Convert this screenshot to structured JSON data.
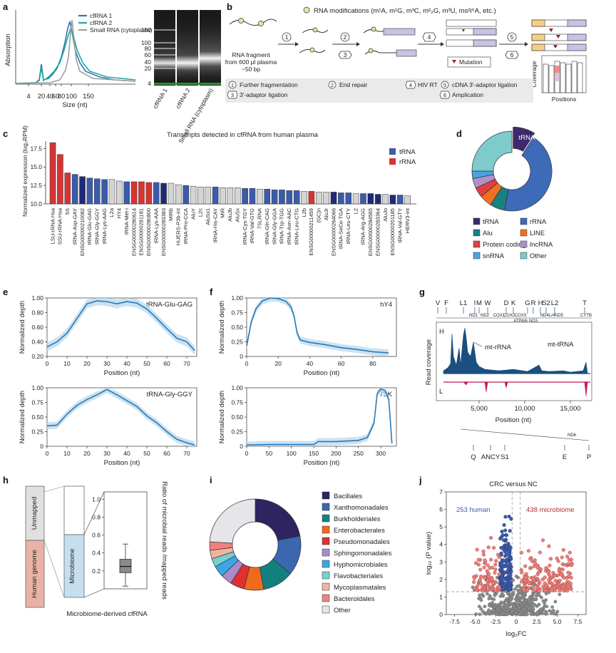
{
  "colors": {
    "trna": "#3b5bab",
    "rrna": "#d63333",
    "other_bar": "#d4d4d4",
    "line_blue": "#2a78b5",
    "band_blue": "#b8d8ee",
    "cov_h": "#1a4f80",
    "cov_l": "#c2185b",
    "human": "#e8b3a5",
    "microbiome": "#c6dff0",
    "unmapped": "#e0e0e0"
  },
  "panel_a": {
    "label": "a",
    "ylabel": "Absorption",
    "xlabel": "Size (nt)",
    "xticks": [
      "4",
      "20",
      "40",
      "60",
      "80",
      "100",
      "150"
    ],
    "legend": [
      "cfRNA 1",
      "cfRNA 2",
      "Small RNA (cytoplasm)"
    ],
    "legend_colors": [
      "#2a78b5",
      "#23a79a",
      "#9e9e9e"
    ],
    "gel_ladder": [
      "150",
      "100",
      "80",
      "60",
      "40",
      "20",
      "4"
    ],
    "gel_lanes": [
      "cfRNA 1",
      "cfRNA 2",
      "Small RNA (cytoplasm)"
    ]
  },
  "panel_b": {
    "label": "b",
    "title": "RNA modifications (m¹A, m¹G, m³C, m²₂G, m³U, ms²i⁶A, etc.)",
    "fragment": [
      "RNA fragment",
      "from 600 μl plasma",
      "~50 bp"
    ],
    "mutation": "Mutation",
    "coverage": "Coverage",
    "positions": "Positions",
    "steps": [
      {
        "n": "1",
        "text": "Further fragmentation"
      },
      {
        "n": "2",
        "text": "End repair"
      },
      {
        "n": "3",
        "text": "3′-adaptor ligation"
      },
      {
        "n": "4",
        "text": "HIV RT"
      },
      {
        "n": "5",
        "text": "cDNA 3′-adaptor ligation"
      },
      {
        "n": "6",
        "text": "Amplication"
      }
    ]
  },
  "panel_c": {
    "label": "c",
    "chart_data": {
      "type": "bar",
      "title": "Transcripts detected in cfRNA from human plasma",
      "ylabel": "Normalized expression (log₂RPM)",
      "ylim": [
        10.0,
        18.5
      ],
      "yticks": [
        10.0,
        12.5,
        15.0,
        17.5
      ],
      "legend": [
        "tRNA",
        "rRNA"
      ],
      "categories": [
        "LSU-rRNA Hsa",
        "SSU-rRNA Hsa",
        "5S",
        "tRNA-Asp-GAY",
        "ENSG00000210082",
        "tRNA-Glu-GAG",
        "tRNA-Gly-GGY",
        "tRNA-Lys-AAG",
        "L2a",
        "HY4",
        "tRNA-Met-i",
        "ENSG00000280614",
        "ENSG00000281181",
        "ENSG00000280800",
        "tRNA-Lys-AAA",
        "ENSG00000283383",
        "MIRb",
        "HUERS-P3b-int",
        "tRNA-Pro-CCA",
        "AluY",
        "L2c",
        "AluSx1",
        "tRNA-His-CAY",
        "MIR",
        "AluJb",
        "AluSx",
        "tRNA-Cys-TGY",
        "tRNA-Val-GTG",
        "7SLRNA",
        "tRNA-Gln-CAG",
        "tRNA-Gly-GGA",
        "tRNA-Trp-TGG",
        "tRNA-Asn-AAC",
        "tRNA-Leu-CTG",
        "L2b",
        "ENSG00000211459",
        "(GC)n",
        "AluJr",
        "ENSG00000264066",
        "tRNA-SeCe-TGA",
        "tRNA-Leu-CTY",
        "L2",
        "tRNA-Arg-AGG",
        "ENSG00000284565",
        "ENSG00000283364",
        "AluJo",
        "ENSG00000201185",
        "tRNA-Val-GTY",
        "HERV3-int"
      ],
      "values": [
        18.3,
        16.7,
        14.2,
        14.0,
        13.7,
        13.5,
        13.4,
        13.3,
        13.3,
        13.1,
        13.0,
        13.0,
        13.0,
        12.9,
        12.9,
        12.8,
        12.8,
        12.6,
        12.5,
        12.4,
        12.3,
        12.3,
        12.3,
        12.2,
        12.2,
        12.2,
        12.1,
        12.1,
        12.0,
        12.0,
        11.9,
        11.9,
        11.8,
        11.8,
        11.7,
        11.7,
        11.6,
        11.6,
        11.6,
        11.5,
        11.5,
        11.4,
        11.4,
        11.4,
        11.3,
        11.3,
        11.2,
        11.2,
        11.1
      ],
      "classes": [
        "r",
        "r",
        "r",
        "t",
        "b",
        "t",
        "t",
        "t",
        "g",
        "g",
        "t",
        "r",
        "r",
        "r",
        "t",
        "b",
        "g",
        "g",
        "t",
        "g",
        "g",
        "g",
        "t",
        "g",
        "g",
        "g",
        "t",
        "t",
        "g",
        "t",
        "t",
        "t",
        "t",
        "t",
        "g",
        "r",
        "g",
        "g",
        "b",
        "t",
        "t",
        "g",
        "t",
        "b",
        "b",
        "g",
        "b",
        "t",
        "g"
      ]
    }
  },
  "panel_d": {
    "label": "d",
    "chart_data": {
      "type": "pie",
      "center_label": "tRNA",
      "slices": [
        {
          "name": "tRNA",
          "value": 0.09,
          "color": "#3d2a6e"
        },
        {
          "name": "rRNA",
          "value": 0.44,
          "color": "#3d6bb8"
        },
        {
          "name": "Alu",
          "value": 0.06,
          "color": "#1a8080"
        },
        {
          "name": "LINE",
          "value": 0.05,
          "color": "#f07023"
        },
        {
          "name": "Protein coding",
          "value": 0.04,
          "color": "#e04040"
        },
        {
          "name": "lncRNA",
          "value": 0.04,
          "color": "#b090cc"
        },
        {
          "name": "snRNA",
          "value": 0.03,
          "color": "#4aa3e0"
        },
        {
          "name": "Other",
          "value": 0.25,
          "color": "#7dcbcb"
        }
      ]
    }
  },
  "panel_e": {
    "label": "e",
    "plots": [
      {
        "title": "tRNA-Glu-GAG",
        "ylabel": "Normalized depth",
        "xlabel": "Position (nt)",
        "xlim": [
          0,
          75
        ],
        "ylim": [
          0.2,
          1.0
        ],
        "xticks": [
          0,
          10,
          20,
          30,
          40,
          50,
          60,
          70
        ],
        "yticks": [
          0.2,
          0.4,
          0.6,
          0.8,
          1.0
        ],
        "x": [
          0,
          5,
          10,
          15,
          20,
          25,
          30,
          35,
          40,
          45,
          50,
          55,
          60,
          65,
          70,
          74
        ],
        "y": [
          0.33,
          0.4,
          0.52,
          0.72,
          0.92,
          0.96,
          0.95,
          0.92,
          0.95,
          0.93,
          0.85,
          0.72,
          0.58,
          0.45,
          0.4,
          0.28
        ]
      },
      {
        "title": "tRNA-Gly-GGY",
        "ylabel": "Normalized depth",
        "xlabel": "Position (nt)",
        "xlim": [
          0,
          75
        ],
        "ylim": [
          0.0,
          1.0
        ],
        "xticks": [
          0,
          10,
          20,
          30,
          40,
          50,
          60,
          70
        ],
        "yticks": [
          0,
          0.25,
          0.5,
          0.75,
          1.0
        ],
        "x": [
          0,
          5,
          10,
          15,
          20,
          25,
          30,
          35,
          40,
          45,
          50,
          55,
          60,
          65,
          70,
          74
        ],
        "y": [
          0.35,
          0.36,
          0.55,
          0.7,
          0.8,
          0.88,
          0.97,
          0.88,
          0.78,
          0.68,
          0.52,
          0.4,
          0.25,
          0.12,
          0.06,
          0.02
        ]
      }
    ]
  },
  "panel_f": {
    "label": "f",
    "plots": [
      {
        "title": "hY4",
        "ylabel": "Normalized depth",
        "xlabel": "Position (nt)",
        "xlim": [
          0,
          95
        ],
        "ylim": [
          0,
          1.0
        ],
        "xticks": [
          0,
          20,
          40,
          60,
          80
        ],
        "yticks": [
          0,
          0.25,
          0.5,
          0.75,
          1.0
        ],
        "x": [
          0,
          3,
          6,
          10,
          15,
          20,
          25,
          28,
          30,
          32,
          34,
          40,
          50,
          60,
          70,
          80,
          90
        ],
        "y": [
          0.18,
          0.6,
          0.82,
          0.95,
          1.0,
          0.99,
          0.94,
          0.85,
          0.7,
          0.4,
          0.28,
          0.24,
          0.2,
          0.15,
          0.12,
          0.08,
          0.06
        ]
      },
      {
        "title": "7SK",
        "ylabel": "Normalized depth",
        "xlabel": "Position (nt)",
        "xlim": [
          0,
          335
        ],
        "ylim": [
          0,
          1.0
        ],
        "xticks": [
          0,
          50,
          100,
          150,
          200,
          250,
          300
        ],
        "yticks": [
          0,
          0.25,
          0.5,
          0.75,
          1.0
        ],
        "x": [
          0,
          50,
          100,
          150,
          160,
          200,
          250,
          270,
          285,
          292,
          300,
          310,
          318,
          325
        ],
        "y": [
          0.02,
          0.03,
          0.03,
          0.03,
          0.08,
          0.08,
          0.1,
          0.15,
          0.4,
          0.9,
          0.98,
          0.95,
          0.8,
          0.05
        ]
      }
    ]
  },
  "panel_g": {
    "label": "g",
    "top_letters": [
      "V",
      "F",
      "L1",
      "I",
      "M",
      "W",
      "D",
      "K",
      "G",
      "R",
      "H",
      "S2",
      "L2",
      "T"
    ],
    "genes": [
      "ND1",
      "ND2",
      "COX1",
      "COX2",
      "COX3",
      "ATP8/6",
      "ND3",
      "ND4L/4",
      "ND5",
      "CYTB"
    ],
    "ylabel": "Read coverage",
    "xlabel": "Position (nt)",
    "xticks": [
      "5,000",
      "10,000",
      "15,000"
    ],
    "strand_h": "H",
    "strand_l": "L",
    "ann_rrna": "mt-rRNA",
    "ann_trna": "mt-tRNA",
    "nd6": "ND6",
    "bottom_letters": [
      "Q",
      "ANCY",
      "S1",
      "E",
      "P"
    ]
  },
  "panel_h": {
    "label": "h",
    "bar_labels": [
      "Unmapped",
      "Human genome"
    ],
    "sub_labels": [
      "Microbiome"
    ],
    "ylabel": "Ratio of microbial reads /mapped reads",
    "yticks": [
      "0.2",
      "0.4",
      "0.6",
      "0.8",
      "1.0"
    ],
    "caption": "Microbiome-derived cfRNA",
    "box": {
      "min": 0.03,
      "q1": 0.18,
      "median": 0.25,
      "q3": 0.33,
      "max": 0.5
    }
  },
  "panel_i": {
    "label": "i",
    "chart_data": {
      "type": "pie",
      "slices": [
        {
          "name": "Bacillales",
          "value": 0.22,
          "color": "#2e2460"
        },
        {
          "name": "Xanthomonadales",
          "value": 0.14,
          "color": "#3b66b0"
        },
        {
          "name": "Burkholderiales",
          "value": 0.11,
          "color": "#138080"
        },
        {
          "name": "Enterobacterales",
          "value": 0.07,
          "color": "#f06a1c"
        },
        {
          "name": "Pseudomonadales",
          "value": 0.05,
          "color": "#e03030"
        },
        {
          "name": "Sphingomonadales",
          "value": 0.04,
          "color": "#a98ccc"
        },
        {
          "name": "Hyphomicrobiales",
          "value": 0.04,
          "color": "#3aa6e8"
        },
        {
          "name": "Flavobacteriales",
          "value": 0.03,
          "color": "#78cfcf"
        },
        {
          "name": "Mycoplasmatales",
          "value": 0.03,
          "color": "#f0b49a"
        },
        {
          "name": "Bacteroidales",
          "value": 0.03,
          "color": "#f08080"
        },
        {
          "name": "Other",
          "value": 0.24,
          "color": "#e6e6ea"
        }
      ]
    }
  },
  "panel_j": {
    "label": "j",
    "chart_data": {
      "type": "scatter",
      "title": "CRC versus NC",
      "xlabel": "log₂FC",
      "ylabel": "log₁₀ (P value)",
      "xlim": [
        -8.5,
        8.5
      ],
      "ylim": [
        0,
        7
      ],
      "xticks": [
        -7.5,
        -5.0,
        -2.5,
        0,
        2.5,
        5.0,
        7.5
      ],
      "yticks": [
        0,
        1,
        2,
        3,
        4,
        5,
        6,
        7
      ],
      "threshold_y": 1.3,
      "ann_human": "253 human",
      "ann_microbiome": "438 microbiome"
    }
  }
}
